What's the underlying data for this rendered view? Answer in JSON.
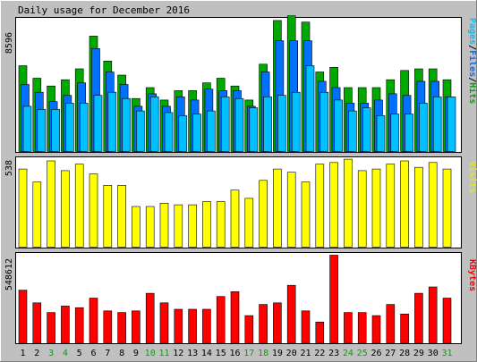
{
  "title": "Daily usage for December 2016",
  "colors": {
    "background": "#c0c0c0",
    "panel": "#ffffff",
    "hits": "#00a800",
    "files": "#0070ff",
    "pages": "#00c0ff",
    "visits": "#ffff00",
    "kbytes": "#ff0000",
    "weekday_label": "#000000",
    "weekend_label": "#00a800"
  },
  "legends": {
    "top": [
      "Pages",
      "Files",
      "Hits"
    ],
    "middle": "Visits",
    "bottom": "KBytes"
  },
  "chart_data": [
    {
      "type": "bar",
      "title": "Daily usage for December 2016",
      "ymax_label": "8596",
      "ylim": [
        0,
        8596
      ],
      "categories": [
        "1",
        "2",
        "3",
        "4",
        "5",
        "6",
        "7",
        "8",
        "9",
        "10",
        "11",
        "12",
        "13",
        "14",
        "15",
        "16",
        "17",
        "18",
        "19",
        "20",
        "21",
        "22",
        "23",
        "24",
        "25",
        "26",
        "27",
        "28",
        "29",
        "30",
        "31"
      ],
      "weekend": [
        "3",
        "4",
        "10",
        "11",
        "17",
        "18",
        "24",
        "25",
        "31"
      ],
      "series": [
        {
          "name": "Hits",
          "values": [
            5500,
            4700,
            4200,
            4600,
            5300,
            7400,
            5800,
            4900,
            3400,
            4100,
            3300,
            3900,
            3900,
            4400,
            4700,
            4200,
            3300,
            5600,
            8400,
            8700,
            8300,
            5100,
            5400,
            4100,
            4100,
            4100,
            4600,
            5200,
            5300,
            5300,
            4600
          ]
        },
        {
          "name": "Files",
          "values": [
            4300,
            3800,
            3200,
            3600,
            4400,
            6600,
            5100,
            4300,
            2900,
            3700,
            2900,
            3500,
            3300,
            4000,
            3900,
            3900,
            2900,
            5100,
            7100,
            7100,
            7100,
            4500,
            4100,
            3100,
            3100,
            3300,
            3700,
            3600,
            4500,
            4500,
            3500
          ]
        },
        {
          "name": "Pages",
          "values": [
            2900,
            2700,
            2700,
            3100,
            3100,
            3600,
            3800,
            3400,
            2600,
            3500,
            2500,
            2300,
            2400,
            2600,
            3500,
            3400,
            2800,
            3500,
            3600,
            3800,
            5500,
            3800,
            3300,
            2600,
            2800,
            2300,
            2400,
            2400,
            3100,
            3500,
            3500
          ]
        }
      ]
    },
    {
      "type": "bar",
      "ymax_label": "538",
      "ylim": [
        0,
        538
      ],
      "series": [
        {
          "name": "Visits",
          "values": [
            480,
            400,
            530,
            470,
            510,
            450,
            380,
            380,
            250,
            250,
            270,
            260,
            260,
            280,
            280,
            350,
            300,
            410,
            480,
            460,
            400,
            510,
            520,
            540,
            470,
            480,
            510,
            530,
            490,
            520,
            480
          ]
        }
      ]
    },
    {
      "type": "bar",
      "ymax_label": "548612",
      "ylim": [
        0,
        548612
      ],
      "series": [
        {
          "name": "KBytes",
          "values": [
            330000,
            250000,
            190000,
            230000,
            220000,
            280000,
            200000,
            190000,
            200000,
            310000,
            250000,
            210000,
            210000,
            210000,
            290000,
            320000,
            170000,
            240000,
            250000,
            360000,
            200000,
            130000,
            548612,
            190000,
            190000,
            170000,
            240000,
            180000,
            310000,
            350000,
            280000
          ]
        }
      ]
    }
  ]
}
